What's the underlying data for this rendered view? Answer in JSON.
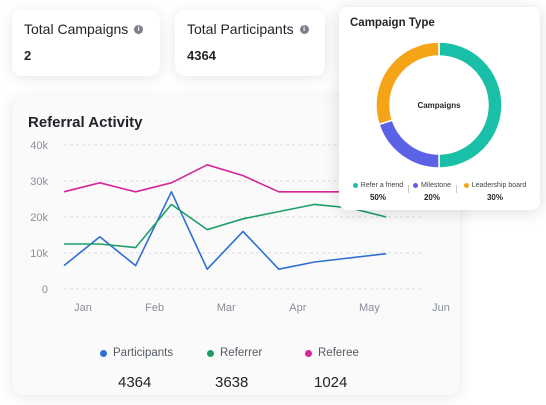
{
  "stats": {
    "total_campaigns": {
      "label": "Total Campaigns",
      "value": "2",
      "icon": "info-icon"
    },
    "total_participants": {
      "label": "Total Participants",
      "value": "4364",
      "icon": "info-icon"
    }
  },
  "referral_activity": {
    "title": "Referral Activity",
    "legend": [
      {
        "name": "Participants",
        "color": "#2f6fd0",
        "total": "4364"
      },
      {
        "name": "Referrer",
        "color": "#1e9e67",
        "total": "3638"
      },
      {
        "name": "Referee",
        "color": "#d6279a",
        "total": "1024"
      }
    ]
  },
  "campaign_type": {
    "title": "Campaign Type",
    "center_label": "Campaigns",
    "items": [
      {
        "label": "Refer a friend",
        "pct": "50%",
        "color": "#19bfa6"
      },
      {
        "label": "Milestone",
        "pct": "20%",
        "color": "#5c62e6"
      },
      {
        "label": "Leadership board",
        "pct": "30%",
        "color": "#f5a417"
      }
    ]
  },
  "chart_data": [
    {
      "type": "line",
      "title": "Referral Activity",
      "x": [
        0,
        0.5,
        1,
        1.5,
        2,
        2.5,
        3,
        3.5,
        4,
        4.5
      ],
      "xticks": [
        "Jan",
        "Feb",
        "Mar",
        "Apr",
        "May",
        "Jun"
      ],
      "yticks": [
        "0",
        "10k",
        "20k",
        "30k",
        "40k"
      ],
      "ylim": [
        0,
        40000
      ],
      "xlim": [
        0,
        5
      ],
      "grid": true,
      "series": [
        {
          "name": "Participants",
          "color": "#2f6fd0",
          "x": [
            0,
            0.5,
            1,
            1.5,
            2,
            2.5,
            3,
            3.5,
            4.5
          ],
          "values": [
            6500,
            14500,
            6500,
            27000,
            5500,
            16000,
            5500,
            7500,
            9800
          ]
        },
        {
          "name": "Referrer",
          "color": "#1e9e67",
          "x": [
            0,
            0.5,
            1,
            1.5,
            2,
            2.5,
            3,
            3.5,
            4,
            4.5
          ],
          "values": [
            12500,
            12500,
            11500,
            23500,
            16500,
            19500,
            21500,
            23500,
            22500,
            20000
          ]
        },
        {
          "name": "Referee",
          "color": "#d6279a",
          "x": [
            0,
            0.5,
            1,
            1.5,
            2,
            2.5,
            3,
            3.5,
            4,
            4.5
          ],
          "values": [
            27000,
            29500,
            27000,
            29500,
            34500,
            31500,
            27000,
            27000,
            27000,
            27000
          ]
        }
      ]
    },
    {
      "type": "pie",
      "title": "Campaign Type",
      "categories": [
        "Refer a friend",
        "Milestone",
        "Leadership board"
      ],
      "values": [
        50,
        20,
        30
      ]
    }
  ]
}
